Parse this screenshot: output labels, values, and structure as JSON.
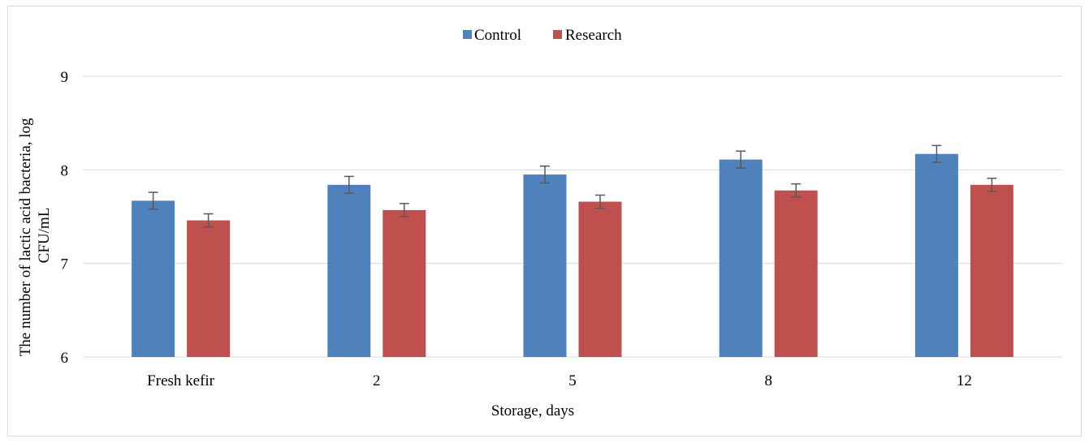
{
  "chart_data": {
    "type": "bar",
    "title": "",
    "xlabel": "Storage, days",
    "ylabel_lines": [
      "The number of lactic acid bacteria, log",
      "CFU/mL"
    ],
    "categories": [
      "Fresh kefir",
      "2",
      "5",
      "8",
      "12"
    ],
    "series": [
      {
        "name": "Control",
        "color": "#4f81bd",
        "values": [
          7.67,
          7.84,
          7.95,
          8.11,
          8.17
        ],
        "errors": [
          0.09,
          0.09,
          0.09,
          0.09,
          0.09
        ]
      },
      {
        "name": "Research",
        "color": "#c0504d",
        "values": [
          7.46,
          7.57,
          7.66,
          7.78,
          7.84
        ],
        "errors": [
          0.07,
          0.07,
          0.07,
          0.07,
          0.07
        ]
      }
    ],
    "ylim": [
      6,
      9
    ],
    "yticks": [
      6,
      7,
      8,
      9
    ],
    "grid": true,
    "legend_position": "top-center",
    "error_bar_color": "#595959"
  }
}
